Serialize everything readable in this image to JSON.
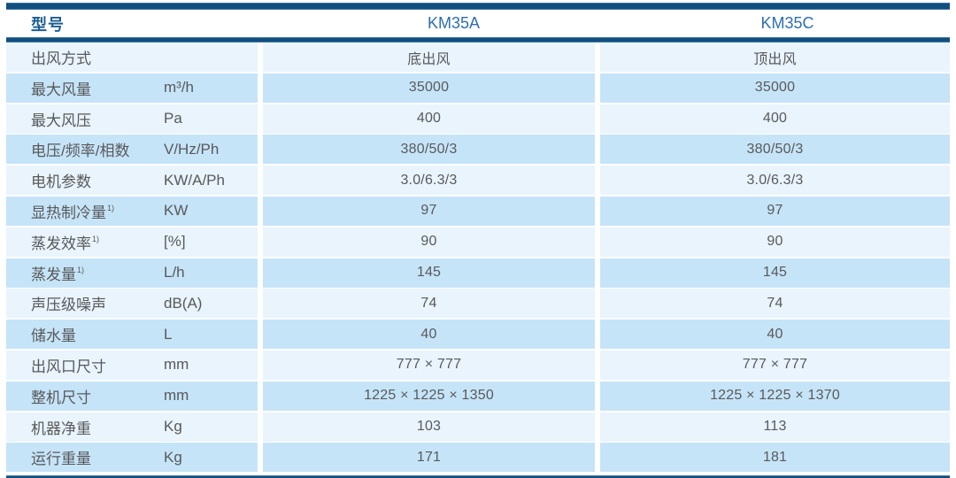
{
  "table": {
    "header": {
      "model_label": "型号",
      "columns": [
        "KM35A",
        "KM35C"
      ]
    },
    "rows": [
      {
        "label": "出风方式",
        "sup": "",
        "unit": "",
        "a": "底出风",
        "b": "顶出风"
      },
      {
        "label": "最大风量",
        "sup": "",
        "unit": "m³/h",
        "a": "35000",
        "b": "35000"
      },
      {
        "label": "最大风压",
        "sup": "",
        "unit": "Pa",
        "a": "400",
        "b": "400"
      },
      {
        "label": "电压/频率/相数",
        "sup": "",
        "unit": "V/Hz/Ph",
        "a": "380/50/3",
        "b": "380/50/3"
      },
      {
        "label": "电机参数",
        "sup": "",
        "unit": "KW/A/Ph",
        "a": "3.0/6.3/3",
        "b": "3.0/6.3/3"
      },
      {
        "label": "显热制冷量",
        "sup": "1)",
        "unit": "KW",
        "a": "97",
        "b": "97"
      },
      {
        "label": "蒸发效率",
        "sup": "1)",
        "unit": "[%]",
        "a": "90",
        "b": "90"
      },
      {
        "label": "蒸发量",
        "sup": "1)",
        "unit": "L/h",
        "a": "145",
        "b": "145"
      },
      {
        "label": "声压级噪声",
        "sup": "",
        "unit": "dB(A)",
        "a": "74",
        "b": "74"
      },
      {
        "label": "储水量",
        "sup": "",
        "unit": "L",
        "a": "40",
        "b": "40"
      },
      {
        "label": "出风口尺寸",
        "sup": "",
        "unit": "mm",
        "a": "777 × 777",
        "b": "777 × 777"
      },
      {
        "label": "整机尺寸",
        "sup": "",
        "unit": "mm",
        "a": "1225 × 1225 × 1350",
        "b": "1225 × 1225 × 1370"
      },
      {
        "label": "机器净重",
        "sup": "",
        "unit": "Kg",
        "a": "103",
        "b": "113"
      },
      {
        "label": "运行重量",
        "sup": "",
        "unit": "Kg",
        "a": "171",
        "b": "181"
      }
    ],
    "colors": {
      "navy_rule": "#11507e",
      "header_model_blue": "#2e6fae",
      "header_label_blue": "#1c5e92",
      "row_light": "#e9f4fc",
      "row_dark": "#c6e4f8",
      "body_text": "#58595b"
    }
  }
}
